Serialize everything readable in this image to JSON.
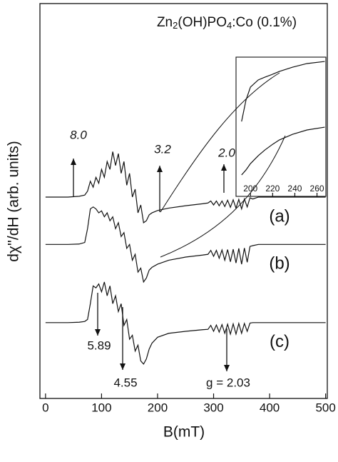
{
  "chart_data": [
    {
      "type": "line",
      "title": "Zn2(OH)PO4:Co (0.1%)",
      "x_label": "B(mT)",
      "y_label": "dχ''/dH (arb. units)",
      "xlim": [
        -10,
        503
      ],
      "ylim": [
        0,
        100
      ],
      "xticks": [
        0,
        100,
        200,
        300,
        400,
        500
      ],
      "x": [
        0,
        40,
        60,
        70,
        75,
        80,
        85,
        90,
        95,
        100,
        105,
        110,
        115,
        120,
        125,
        130,
        135,
        140,
        145,
        150,
        155,
        160,
        165,
        170,
        175,
        180,
        185,
        190,
        200,
        220,
        250,
        280,
        290,
        295,
        300,
        305,
        310,
        315,
        320,
        325,
        330,
        335,
        340,
        345,
        350,
        355,
        360,
        365,
        370,
        380,
        400,
        450,
        500
      ],
      "series": [
        {
          "name": "(a)",
          "color": "#111111",
          "values": [
            51,
            51,
            51.2,
            51.5,
            52.5,
            55,
            53.5,
            56,
            54.5,
            58,
            56,
            60,
            58,
            62.5,
            59,
            62,
            57,
            60,
            54,
            57,
            51,
            53,
            47,
            49,
            44.5,
            45,
            46.5,
            47,
            47.6,
            48.2,
            48.8,
            49.3,
            49.5,
            50,
            49,
            50,
            48.8,
            50,
            48.6,
            50.2,
            48.4,
            50.3,
            48.2,
            50.4,
            48,
            50.5,
            48.5,
            50.8,
            50.5,
            51,
            51,
            51,
            51
          ]
        },
        {
          "name": "(b)",
          "color": "#111111",
          "values": [
            39,
            39,
            39.1,
            39.5,
            43,
            48,
            48.5,
            48,
            47,
            47.5,
            46,
            47,
            45,
            46,
            43,
            44.5,
            41,
            42,
            38,
            39,
            35,
            36.5,
            32,
            33,
            29.5,
            30.5,
            32.5,
            33.2,
            34,
            35,
            35.8,
            36.3,
            36.5,
            37.5,
            36,
            37.5,
            35.5,
            37.6,
            35,
            37.7,
            34.6,
            37.8,
            34.3,
            38,
            34,
            38.1,
            34.5,
            38.5,
            38.7,
            39,
            39,
            39,
            39
          ]
        },
        {
          "name": "(c)",
          "color": "#111111",
          "values": [
            19.2,
            19.2,
            19.3,
            19.5,
            20,
            24,
            28.5,
            28,
            29,
            27,
            29.5,
            26,
            28.5,
            24,
            26,
            22,
            24,
            18.5,
            20,
            15,
            16,
            12,
            13.5,
            9.5,
            8.7,
            10,
            12.5,
            14,
            15.5,
            16.5,
            17,
            17.4,
            17.5,
            18.5,
            17,
            18.6,
            16.8,
            18.7,
            16.5,
            18.8,
            16.3,
            18.9,
            16.3,
            19,
            16.5,
            19,
            17,
            19.1,
            19.2,
            19.2,
            19.2,
            19.2,
            19.2
          ]
        }
      ],
      "annotations": [
        "8.0",
        "3.2",
        "2.0",
        "5.89",
        "4.55",
        "g = 2.03"
      ]
    },
    {
      "type": "line",
      "xlim": [
        187,
        268
      ],
      "ylim": [
        0,
        100
      ],
      "xticks": [
        200,
        220,
        240,
        260
      ],
      "x": [
        192,
        196,
        200,
        207,
        213,
        220,
        226,
        238,
        251,
        267
      ],
      "series": [
        {
          "color": "#111111",
          "values": [
            53.8,
            69.2,
            78.5,
            83.6,
            85.6,
            87.7,
            89.7,
            92.8,
            95.4,
            96.9
          ]
        },
        {
          "color": "#111111",
          "values": [
            15.4,
            19,
            23.5,
            29.2,
            33.3,
            37.4,
            40.5,
            44.6,
            47.7,
            49.7
          ]
        }
      ]
    }
  ]
}
